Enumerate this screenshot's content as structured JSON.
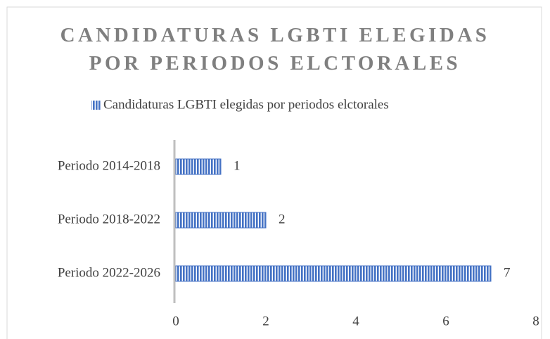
{
  "chart_data": {
    "type": "bar",
    "orientation": "horizontal",
    "title": "CANDIDATURAS LGBTI ELEGIDAS POR PERIODOS ELCTORALES",
    "categories": [
      "Periodo 2014-2018",
      "Periodo 2018-2022",
      "Periodo 2022-2026"
    ],
    "series": [
      {
        "name": "Candidaturas LGBTI elegidas por periodos elctorales",
        "color": "#4472c4",
        "values": [
          1,
          2,
          7
        ]
      }
    ],
    "xlim": [
      0,
      8
    ],
    "xticks": [
      0,
      2,
      4,
      6,
      8
    ],
    "legend": "top"
  }
}
